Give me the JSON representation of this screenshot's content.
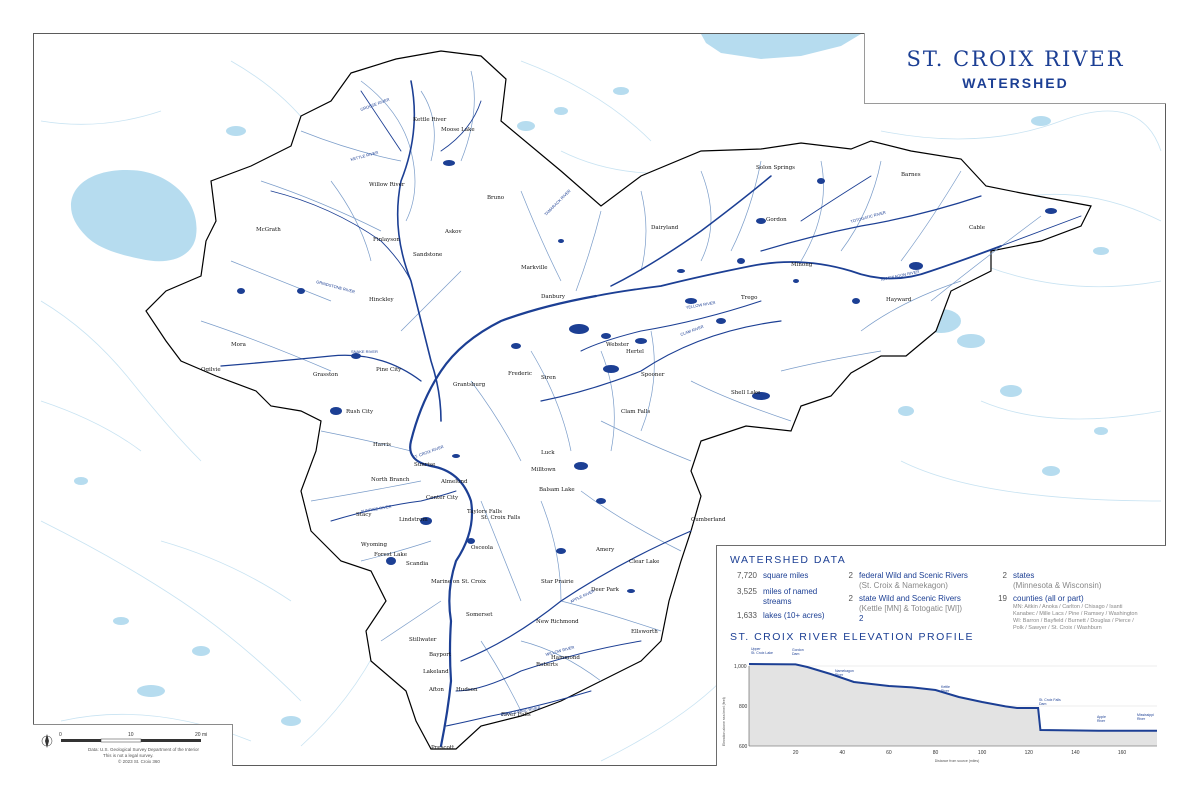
{
  "title": {
    "main": "ST. CROIX RIVER",
    "sub": "WATERSHED"
  },
  "colors": {
    "river": "#1c3f94",
    "water": "#b6dcef",
    "stream": "#c8e3f2",
    "boundary": "#000000",
    "profile_fill": "#e3e3e3"
  },
  "watershed_data": {
    "heading": "WATERSHED DATA",
    "stats": [
      {
        "num": "7,720",
        "text": "square miles"
      },
      {
        "num": "3,525",
        "text": "miles of named streams"
      },
      {
        "num": "1,633",
        "text": "lakes (10+ acres)"
      }
    ],
    "rivers": [
      {
        "num": "2",
        "text": "federal Wild and Scenic Rivers",
        "sub": "(St. Croix & Namekagon)"
      },
      {
        "num": "2",
        "text": "state Wild and Scenic Rivers",
        "sub": "(Kettle [MN] & Totogatic [WI])"
      }
    ],
    "states": {
      "num": "2",
      "text": "states",
      "sub": "(Minnesota & Wisconsin)"
    },
    "counties": {
      "num": "19",
      "text": "counties (all or part)",
      "mn": "MN: Aitkin / Anoka / Carlton / Chisago / Isanti",
      "mn2": "Kanabec / Mille Lacs / Pine / Ramsey / Washington",
      "wi": "WI: Barron / Bayfield / Burnett / Douglas / Pierce /",
      "wi2": "Polk / Sawyer / St. Croix / Washburn"
    }
  },
  "profile": {
    "heading": "ST. CROIX RIVER ELEVATION PROFILE",
    "ylabel": "Elevation above sea level (feet)",
    "xlabel": "Distance from source (miles)",
    "y_ticks": [
      "1,000",
      "800",
      "600"
    ],
    "x_ticks": [
      "20",
      "40",
      "60",
      "80",
      "100",
      "120",
      "140",
      "160"
    ],
    "annotations": [
      {
        "line1": "Upper",
        "line2": "St. Croix Lake"
      },
      {
        "line1": "Gordon",
        "line2": "Dam"
      },
      {
        "line1": "Namekagon",
        "line2": "River"
      },
      {
        "line1": "Kettle",
        "line2": "River"
      },
      {
        "line1": "St. Croix Falls",
        "line2": "Dam"
      },
      {
        "line1": "Apple",
        "line2": "River"
      },
      {
        "line1": "Mississippi",
        "line2": "River"
      }
    ]
  },
  "scale": {
    "ticks": [
      "0",
      "10",
      "20 mi"
    ],
    "credit1": "Data: U.S. Geological Survey Department of the Interior",
    "credit2": "This is not a legal survey.",
    "credit3": "© 2023 St. Croix 360"
  },
  "map_labels": {
    "towns": [
      "Kettle River",
      "Moose Lake",
      "Willow River",
      "McGrath",
      "Finlayson",
      "Sandstone",
      "Hinckley",
      "Mora",
      "Ogilvie",
      "Grasston",
      "Pine City",
      "Rush City",
      "Harris",
      "North Branch",
      "Stacy",
      "Wyoming",
      "Forest Lake",
      "Lindstrom",
      "Center City",
      "Taylors Falls",
      "St. Croix Falls",
      "Osceola",
      "Scandia",
      "Marine on St. Croix",
      "Stillwater",
      "Bayport",
      "Lakeland",
      "Hudson",
      "Afton",
      "Prescott",
      "River Falls",
      "Ellsworth",
      "Roberts",
      "Hammond",
      "New Richmond",
      "Somerset",
      "Star Prairie",
      "Deer Park",
      "Clear Lake",
      "Amery",
      "Luck",
      "Milltown",
      "Balsam Lake",
      "Frederic",
      "Siren",
      "Grantsburg",
      "Webster",
      "Danbury",
      "Clam Falls",
      "Shell Lake",
      "Minong",
      "Gordon",
      "Solon Springs",
      "Hayward",
      "Cable",
      "Spooner",
      "Trego",
      "Cumberland",
      "Barnes",
      "Almelund",
      "Sunrise",
      "Hertel",
      "Dairyland",
      "Markville",
      "Bruno",
      "Askov",
      "Danbury"
    ],
    "rivers": [
      "KETTLE RIVER",
      "SNAKE RIVER",
      "ST. CROIX RIVER",
      "NAMEKAGON RIVER",
      "TOTOGATIC RIVER",
      "CLAM RIVER",
      "YELLOW RIVER",
      "APPLE RIVER",
      "WILLOW RIVER",
      "KINNICKINNIC RIVER",
      "SUNRISE RIVER",
      "GRINDSTONE RIVER",
      "GROUSE RIVER",
      "TAMARACK RIVER"
    ]
  }
}
